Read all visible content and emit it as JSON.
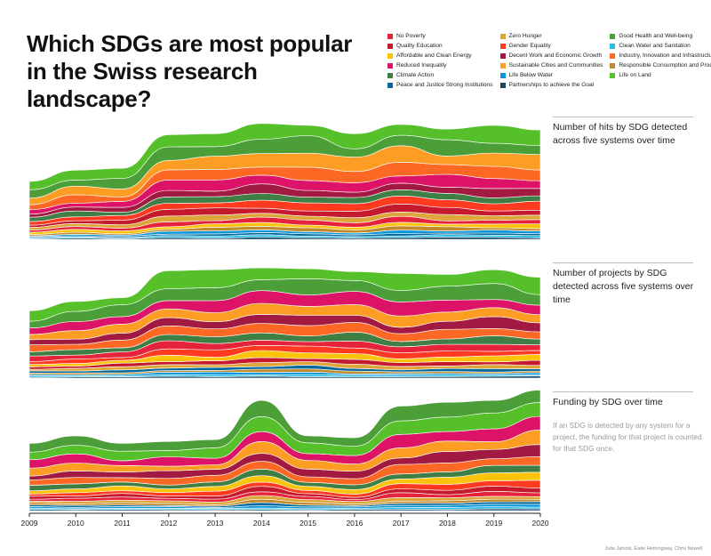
{
  "title": "Which SDGs are most popular in the Swiss research landscape?",
  "legend": [
    {
      "label": "No Poverty",
      "color": "#e5243b"
    },
    {
      "label": "Zero Hunger",
      "color": "#dda63a"
    },
    {
      "label": "Good Health and Well-being",
      "color": "#4c9f38"
    },
    {
      "label": "Quality Education",
      "color": "#c5192d"
    },
    {
      "label": "Gender Equality",
      "color": "#ff3a21"
    },
    {
      "label": "Clean Water and Sanitation",
      "color": "#26bde2"
    },
    {
      "label": "Affordable and Clean Energy",
      "color": "#fcc30b"
    },
    {
      "label": "Decent Work and Economic Growth",
      "color": "#a21942"
    },
    {
      "label": "Industry, Innovation and Infrastructure",
      "color": "#fd6925"
    },
    {
      "label": "Reduced Inequality",
      "color": "#dd1367"
    },
    {
      "label": "Sustainable Cities and Communities",
      "color": "#fd9d24"
    },
    {
      "label": "Responsible Consumption and Production",
      "color": "#bf8b2e"
    },
    {
      "label": "Climate Action",
      "color": "#3f7e44"
    },
    {
      "label": "Life Below Water",
      "color": "#0a97d9"
    },
    {
      "label": "Life on Land",
      "color": "#56c02b"
    },
    {
      "label": "Peace and Justice Strong Institutions",
      "color": "#00689d"
    },
    {
      "label": "Partnerships to achieve the Goal",
      "color": "#19486a"
    }
  ],
  "panels": [
    {
      "label": "Number of hits by SDG detected across five systems over time"
    },
    {
      "label": "Number of projects by SDG detected across five systems over time"
    },
    {
      "label": "Funding by SDG over time",
      "note": "If an SDG is detected by any system for a project, the funding for that project is counted for that SDG once."
    }
  ],
  "credit": "Julia Janicki, Eade Hemingway, Chris Newell",
  "chart_data": {
    "type": "area",
    "x": [
      2009,
      2010,
      2011,
      2012,
      2013,
      2014,
      2015,
      2016,
      2017,
      2018,
      2019,
      2020
    ],
    "panel_totals": [
      [
        62,
        74,
        76,
        112,
        113,
        124,
        122,
        113,
        123,
        118,
        122,
        117
      ],
      [
        72,
        82,
        86,
        115,
        116,
        118,
        117,
        114,
        112,
        111,
        116,
        108
      ],
      [
        72,
        80,
        72,
        74,
        76,
        118,
        80,
        78,
        112,
        116,
        118,
        129
      ]
    ],
    "ylim": [
      0,
      140
    ],
    "note": "Streamgraph values are relative stream thicknesses estimated from the figure; no y-axis scale is printed."
  }
}
